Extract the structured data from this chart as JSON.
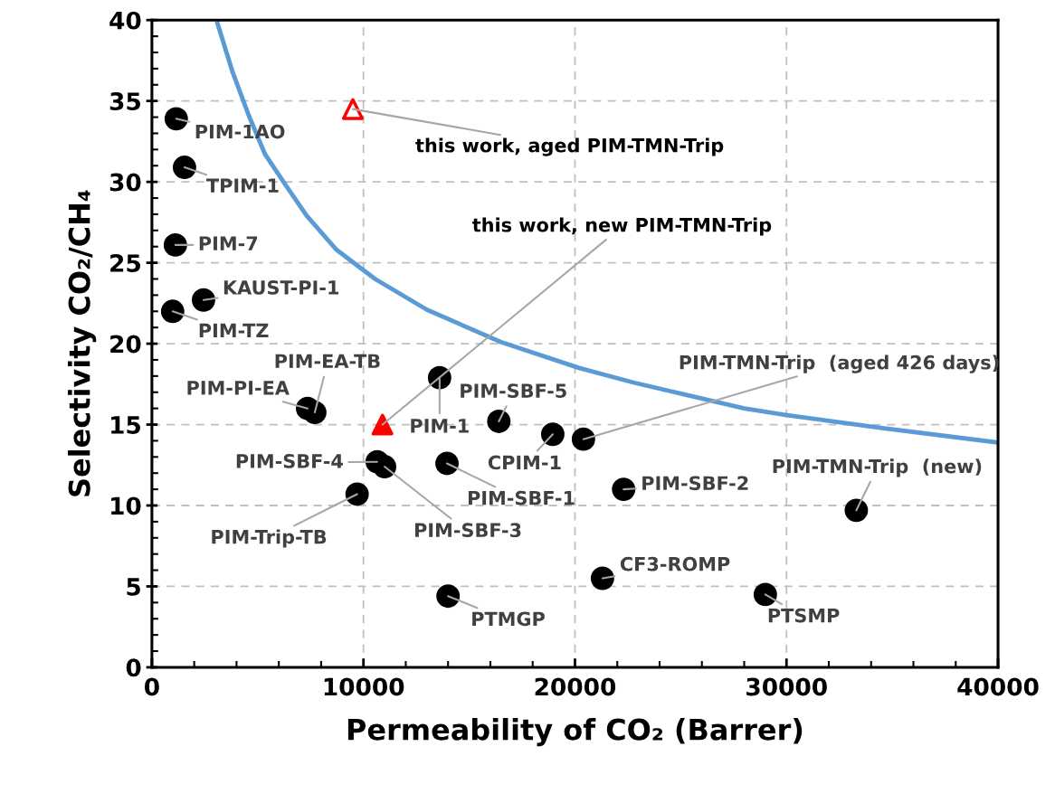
{
  "chart_data": {
    "type": "scatter",
    "xlabel": "Permeability of CO₂ (Barrer)",
    "ylabel": "Selectivity CO₂/CH₄",
    "xlim": [
      0,
      40000
    ],
    "ylim": [
      0,
      40
    ],
    "xticks": [
      0,
      10000,
      20000,
      30000,
      40000
    ],
    "yticks": [
      0,
      5,
      10,
      15,
      20,
      25,
      30,
      35,
      40
    ],
    "grid": true,
    "legend": false,
    "series": [
      {
        "type": "line",
        "color": "#5b9bd5",
        "marker": "none",
        "line_style": "solid",
        "x": [
          3100,
          3810,
          4580,
          5350,
          6270,
          7320,
          8730,
          10550,
          13000,
          16500,
          20190,
          22760,
          28000,
          29950,
          34440,
          39950
        ],
        "values": [
          39.8,
          36.8,
          34.1,
          31.7,
          29.9,
          27.9,
          25.8,
          24.0,
          22.1,
          20.1,
          18.5,
          17.6,
          16.0,
          15.6,
          14.8,
          13.9
        ]
      },
      {
        "color": "#000000",
        "marker": "circle",
        "x": [
          1150,
          1540,
          1110,
          2440,
          980,
          7360,
          7700,
          13600,
          16400,
          18950,
          20400,
          10650,
          11000,
          13950,
          9700,
          22300,
          33300,
          21300,
          29000,
          14000
        ],
        "values": [
          33.9,
          30.9,
          26.1,
          22.7,
          22.0,
          16.0,
          15.75,
          17.9,
          15.2,
          14.4,
          14.1,
          12.7,
          12.4,
          12.6,
          10.7,
          11.0,
          9.7,
          5.5,
          4.5,
          4.4
        ]
      },
      {
        "color": "#ff0000",
        "marker": "triangle",
        "x": [
          10900
        ],
        "values": [
          15.0
        ]
      },
      {
        "color": "#ff0000",
        "marker": "triangle",
        "x": [
          9500
        ],
        "values": [
          34.5
        ]
      }
    ],
    "annotations": [
      {
        "text": "PIM-1AO",
        "x": 1150,
        "y": 33.9
      },
      {
        "text": "TPIM-1",
        "x": 1540,
        "y": 30.9
      },
      {
        "text": "PIM-7",
        "x": 1110,
        "y": 26.1
      },
      {
        "text": "KAUST-PI-1",
        "x": 2440,
        "y": 22.7
      },
      {
        "text": "PIM-TZ",
        "x": 980,
        "y": 22.0
      },
      {
        "text": "PIM-PI-EA",
        "x": 7360,
        "y": 16.0
      },
      {
        "text": "PIM-EA-TB",
        "x": 7700,
        "y": 15.75
      },
      {
        "text": "PIM-1",
        "x": 13600,
        "y": 17.9
      },
      {
        "text": "PIM-SBF-5",
        "x": 16400,
        "y": 15.2
      },
      {
        "text": "CPIM-1",
        "x": 18950,
        "y": 14.4
      },
      {
        "text": "PIM-TMN-Trip  (aged 426 days)",
        "x": 20400,
        "y": 14.1
      },
      {
        "text": "PIM-SBF-4",
        "x": 10650,
        "y": 12.7
      },
      {
        "text": "PIM-SBF-3",
        "x": 11000,
        "y": 12.4
      },
      {
        "text": "PIM-SBF-1",
        "x": 13950,
        "y": 12.6
      },
      {
        "text": "PIM-Trip-TB",
        "x": 9700,
        "y": 10.7
      },
      {
        "text": "PIM-SBF-2",
        "x": 22300,
        "y": 11.0
      },
      {
        "text": "PIM-TMN-Trip  (new)",
        "x": 33300,
        "y": 9.7
      },
      {
        "text": "CF3-ROMP",
        "x": 21300,
        "y": 5.5
      },
      {
        "text": "PTSMP",
        "x": 29000,
        "y": 4.5
      },
      {
        "text": "PTMGP",
        "x": 14000,
        "y": 4.4
      },
      {
        "text": "this work, aged PIM-TMN-Trip",
        "x": 9500,
        "y": 34.5
      },
      {
        "text": "this work, new PIM-TMN-Trip",
        "x": 10900,
        "y": 15.0
      }
    ]
  }
}
